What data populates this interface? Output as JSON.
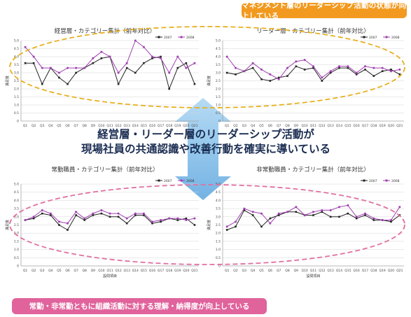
{
  "banners": {
    "top": "マネジメント層のリーダーシップ活動の状態が向上している",
    "bottom": "常勤・非常勤ともに組織活動に対する理解・納得度が向上している"
  },
  "center_message": {
    "line1": "経営層・リーダー層のリーダーシップ活動が",
    "line2": "現場社員の共通認識や改善行動を確実に導いている"
  },
  "colors": {
    "series_2007": "#222222",
    "series_2008": "#a040b0",
    "top_ellipse": "#e8b020",
    "bottom_ellipse": "#e070a0",
    "arrow": "#6aaee0",
    "top_banner": "#f29a1f",
    "bottom_banner": "#e0639c"
  },
  "chart_data": [
    {
      "type": "line",
      "title": "経営層・カテゴリー集計（前年対比）",
      "ylabel": "満足度",
      "xlabel": "",
      "ylim": [
        0,
        5
      ],
      "yticks": [
        "0",
        "0.5",
        "1.0",
        "1.5",
        "2.0",
        "2.5",
        "3.0",
        "3.5",
        "4.0",
        "4.5",
        "5.0"
      ],
      "categories": [
        "Q1",
        "Q2",
        "Q3",
        "Q4",
        "Q5",
        "Q6",
        "Q7",
        "Q8",
        "Q9",
        "Q10",
        "Q11",
        "Q12",
        "Q13",
        "Q14",
        "Q15",
        "Q16",
        "Q17",
        "Q18",
        "Q19",
        "Q20",
        "Q21"
      ],
      "series": [
        {
          "name": "2007",
          "values": [
            3.6,
            3.6,
            2.3,
            3.3,
            2.7,
            2.3,
            3.0,
            3.3,
            3.6,
            3.9,
            4.0,
            2.3,
            3.3,
            3.0,
            3.6,
            3.9,
            4.0,
            2.0,
            3.3,
            3.6,
            2.3
          ]
        },
        {
          "name": "2008",
          "values": [
            4.6,
            4.0,
            3.3,
            3.3,
            3.0,
            3.3,
            3.3,
            3.3,
            3.9,
            4.3,
            4.0,
            3.0,
            3.6,
            5.0,
            4.6,
            4.0,
            3.9,
            3.0,
            4.0,
            3.3,
            3.6
          ]
        }
      ],
      "legend": "top-right"
    },
    {
      "type": "line",
      "title": "リーダー層・カテゴリー集計（前年対比）",
      "ylabel": "満足度",
      "xlabel": "",
      "ylim": [
        0,
        5
      ],
      "yticks": [
        "0",
        "0.5",
        "1.0",
        "1.5",
        "2.0",
        "2.5",
        "3.0",
        "3.5",
        "4.0",
        "4.5",
        "5.0"
      ],
      "categories": [
        "Q1",
        "Q2",
        "Q3",
        "Q4",
        "Q5",
        "Q6",
        "Q7",
        "Q8",
        "Q9",
        "Q10",
        "Q11",
        "Q12",
        "Q13",
        "Q14",
        "Q15",
        "Q16",
        "Q17",
        "Q18",
        "Q19",
        "Q20",
        "Q21"
      ],
      "series": [
        {
          "name": "2007",
          "values": [
            3.0,
            2.9,
            3.1,
            3.3,
            2.6,
            2.5,
            2.7,
            2.8,
            3.4,
            3.2,
            3.3,
            2.5,
            3.0,
            3.3,
            3.3,
            2.9,
            3.2,
            2.8,
            3.1,
            3.2,
            2.9
          ]
        },
        {
          "name": "2008",
          "values": [
            4.0,
            3.3,
            3.1,
            3.6,
            3.2,
            2.9,
            2.6,
            3.3,
            3.7,
            3.8,
            3.4,
            2.7,
            3.1,
            3.4,
            3.4,
            3.0,
            3.4,
            3.3,
            3.3,
            3.1,
            3.2
          ]
        }
      ],
      "legend": "top-right"
    },
    {
      "type": "line",
      "title": "常勤職員・カテゴリー集計（前年対比）",
      "ylabel": "満足度",
      "xlabel": "設問項目",
      "ylim": [
        0,
        5
      ],
      "yticks": [
        "0",
        "0.5",
        "1.0",
        "1.5",
        "2.0",
        "2.5",
        "3.0",
        "3.5",
        "4.0",
        "4.5",
        "5.0"
      ],
      "categories": [
        "Q1",
        "Q2",
        "Q3",
        "Q4",
        "Q5",
        "Q6",
        "Q7",
        "Q8",
        "Q9",
        "Q10",
        "Q11",
        "Q12",
        "Q13",
        "Q14",
        "Q15",
        "Q16",
        "Q17",
        "Q18",
        "Q19",
        "Q20",
        "Q21"
      ],
      "series": [
        {
          "name": "2007",
          "values": [
            2.8,
            2.9,
            3.2,
            3.1,
            2.5,
            2.2,
            3.1,
            2.8,
            3.1,
            3.2,
            3.0,
            3.0,
            2.6,
            3.1,
            3.1,
            2.6,
            2.7,
            2.9,
            2.8,
            2.9,
            2.5
          ]
        },
        {
          "name": "2008",
          "values": [
            2.8,
            3.0,
            3.4,
            3.2,
            2.7,
            2.6,
            3.3,
            2.9,
            3.2,
            3.4,
            3.2,
            3.2,
            2.9,
            3.2,
            3.2,
            2.7,
            2.8,
            2.9,
            2.9,
            2.8,
            2.9
          ]
        }
      ],
      "legend": "top-right"
    },
    {
      "type": "line",
      "title": "非常勤職員・カテゴリー集計（前年対比）",
      "ylabel": "満足度",
      "xlabel": "設問項目",
      "ylim": [
        0,
        5
      ],
      "yticks": [
        "0",
        "0.5",
        "1.0",
        "1.5",
        "2.0",
        "2.5",
        "3.0",
        "3.5",
        "4.0",
        "4.5",
        "5.0"
      ],
      "categories": [
        "Q1",
        "Q2",
        "Q3",
        "Q4",
        "Q5",
        "Q6",
        "Q7",
        "Q8",
        "Q9",
        "Q10",
        "Q11",
        "Q12",
        "Q13",
        "Q14",
        "Q15",
        "Q16",
        "Q17",
        "Q18",
        "Q19",
        "Q20",
        "Q21"
      ],
      "series": [
        {
          "name": "2007",
          "values": [
            2.2,
            2.4,
            3.4,
            3.1,
            2.4,
            2.9,
            3.1,
            3.3,
            3.3,
            3.1,
            3.1,
            3.3,
            3.0,
            3.0,
            3.2,
            2.9,
            3.1,
            2.8,
            2.8,
            2.7,
            3.1
          ]
        },
        {
          "name": "2008",
          "values": [
            2.4,
            2.7,
            3.5,
            3.3,
            3.2,
            2.6,
            3.2,
            3.3,
            3.6,
            3.1,
            3.3,
            3.4,
            3.4,
            3.6,
            3.7,
            3.0,
            3.2,
            2.9,
            2.8,
            2.8,
            3.6
          ]
        }
      ],
      "legend": "top-right"
    }
  ]
}
